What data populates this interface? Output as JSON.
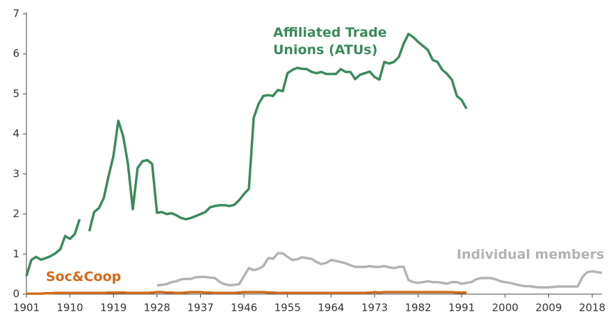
{
  "chart_data": {
    "type": "line",
    "x": [
      1901,
      1902,
      1903,
      1904,
      1905,
      1906,
      1907,
      1908,
      1909,
      1910,
      1911,
      1912,
      1913,
      1914,
      1915,
      1916,
      1917,
      1918,
      1919,
      1920,
      1921,
      1922,
      1923,
      1924,
      1925,
      1926,
      1927,
      1928,
      1929,
      1930,
      1931,
      1932,
      1933,
      1934,
      1935,
      1936,
      1937,
      1938,
      1939,
      1940,
      1941,
      1942,
      1943,
      1944,
      1945,
      1946,
      1947,
      1948,
      1949,
      1950,
      1951,
      1952,
      1953,
      1954,
      1955,
      1956,
      1957,
      1958,
      1959,
      1960,
      1961,
      1962,
      1963,
      1964,
      1965,
      1966,
      1967,
      1968,
      1969,
      1970,
      1971,
      1972,
      1973,
      1974,
      1975,
      1976,
      1977,
      1978,
      1979,
      1980,
      1981,
      1982,
      1983,
      1984,
      1985,
      1986,
      1987,
      1988,
      1989,
      1990,
      1991,
      1992,
      1993,
      1994,
      1995,
      1996,
      1997,
      1998,
      1999,
      2000,
      2001,
      2002,
      2003,
      2004,
      2005,
      2006,
      2007,
      2008,
      2009,
      2010,
      2011,
      2012,
      2013,
      2014,
      2015,
      2016,
      2017,
      2018,
      2019,
      2020
    ],
    "series": [
      {
        "name": "Affiliated Trade Unions (ATUs)",
        "color": "#3b8a5c",
        "values": [
          0.45,
          0.85,
          0.93,
          0.86,
          0.9,
          0.95,
          1.02,
          1.12,
          1.45,
          1.38,
          1.5,
          1.87,
          null,
          1.57,
          2.05,
          2.15,
          2.4,
          2.95,
          3.45,
          4.33,
          3.95,
          3.25,
          2.12,
          3.15,
          3.32,
          3.35,
          3.25,
          2.03,
          2.05,
          2.0,
          2.02,
          1.97,
          1.9,
          1.87,
          1.9,
          1.95,
          2.0,
          2.05,
          2.17,
          2.2,
          2.22,
          2.22,
          2.2,
          2.23,
          2.35,
          2.5,
          2.63,
          4.4,
          4.75,
          4.95,
          4.97,
          4.95,
          5.1,
          5.07,
          5.52,
          5.6,
          5.65,
          5.63,
          5.62,
          5.55,
          5.52,
          5.55,
          5.5,
          5.5,
          5.5,
          5.62,
          5.55,
          5.55,
          5.37,
          5.48,
          5.52,
          5.56,
          5.42,
          5.36,
          5.8,
          5.76,
          5.8,
          5.92,
          6.25,
          6.5,
          6.42,
          6.3,
          6.2,
          6.1,
          5.85,
          5.8,
          5.6,
          5.5,
          5.35,
          4.95,
          4.85,
          4.63,
          null,
          null,
          null,
          null,
          null,
          null,
          null,
          null,
          null,
          null,
          null,
          null,
          null,
          null,
          null,
          null,
          null,
          null,
          null,
          null,
          null,
          null,
          null,
          null,
          null,
          null,
          null,
          null
        ]
      },
      {
        "name": "Individual members",
        "color": "#b3b3b3",
        "values": [
          null,
          null,
          null,
          null,
          null,
          null,
          null,
          null,
          null,
          null,
          null,
          null,
          null,
          null,
          null,
          null,
          null,
          null,
          null,
          null,
          null,
          null,
          null,
          null,
          null,
          null,
          null,
          0.22,
          0.23,
          0.25,
          0.3,
          0.32,
          0.37,
          0.38,
          0.38,
          0.42,
          0.43,
          0.43,
          0.41,
          0.4,
          0.3,
          0.25,
          0.22,
          0.23,
          0.25,
          0.45,
          0.65,
          0.6,
          0.63,
          0.7,
          0.9,
          0.88,
          1.02,
          1.02,
          0.93,
          0.85,
          0.87,
          0.92,
          0.9,
          0.88,
          0.8,
          0.75,
          0.78,
          0.85,
          0.83,
          0.8,
          0.77,
          0.72,
          0.68,
          0.68,
          0.68,
          0.7,
          0.68,
          0.68,
          0.7,
          0.67,
          0.65,
          0.68,
          0.68,
          0.35,
          0.3,
          0.28,
          0.3,
          0.32,
          0.3,
          0.3,
          0.28,
          0.26,
          0.3,
          0.3,
          0.26,
          0.28,
          0.3,
          0.37,
          0.4,
          0.4,
          0.4,
          0.37,
          0.32,
          0.3,
          0.28,
          0.25,
          0.22,
          0.2,
          0.2,
          0.18,
          0.17,
          0.17,
          0.17,
          0.18,
          0.19,
          0.19,
          0.19,
          0.19,
          0.19,
          0.43,
          0.55,
          0.57,
          0.55,
          0.53
        ]
      },
      {
        "name": "Soc&Coop",
        "color": "#d2691e",
        "values": [
          0.01,
          0.01,
          0.01,
          0.01,
          0.02,
          0.02,
          0.03,
          0.03,
          0.03,
          0.03,
          0.03,
          0.03,
          0.03,
          0.03,
          0.03,
          0.03,
          0.03,
          0.04,
          0.04,
          0.04,
          0.04,
          0.03,
          0.03,
          0.03,
          0.03,
          0.03,
          0.04,
          0.05,
          0.05,
          0.04,
          0.04,
          0.03,
          0.03,
          0.04,
          0.05,
          0.05,
          0.05,
          0.04,
          0.04,
          0.03,
          0.03,
          0.03,
          0.03,
          0.03,
          0.04,
          0.05,
          0.05,
          0.05,
          0.05,
          0.05,
          0.04,
          0.04,
          0.03,
          0.03,
          0.03,
          0.03,
          0.03,
          0.03,
          0.03,
          0.03,
          0.03,
          0.03,
          0.03,
          0.03,
          0.03,
          0.03,
          0.03,
          0.03,
          0.03,
          0.03,
          0.03,
          0.04,
          0.05,
          0.04,
          0.05,
          0.05,
          0.05,
          0.05,
          0.05,
          0.05,
          0.05,
          0.05,
          0.05,
          0.05,
          0.05,
          0.05,
          0.05,
          0.05,
          0.05,
          0.04,
          0.04,
          0.04,
          null,
          null,
          null,
          null,
          null,
          null,
          null,
          null,
          null,
          null,
          null,
          null,
          null,
          null,
          null,
          null,
          null,
          null,
          null,
          null,
          null,
          null,
          null,
          null,
          null,
          null,
          null,
          null
        ]
      }
    ],
    "xlim": [
      1901,
      2020
    ],
    "xticks": [
      1901,
      1910,
      1919,
      1928,
      1937,
      1946,
      1955,
      1964,
      1973,
      1982,
      1991,
      2000,
      2009,
      2018
    ],
    "ylim": [
      0,
      7
    ],
    "yticks": [
      0,
      1,
      2,
      3,
      4,
      5,
      6,
      7
    ],
    "grid": false
  }
}
